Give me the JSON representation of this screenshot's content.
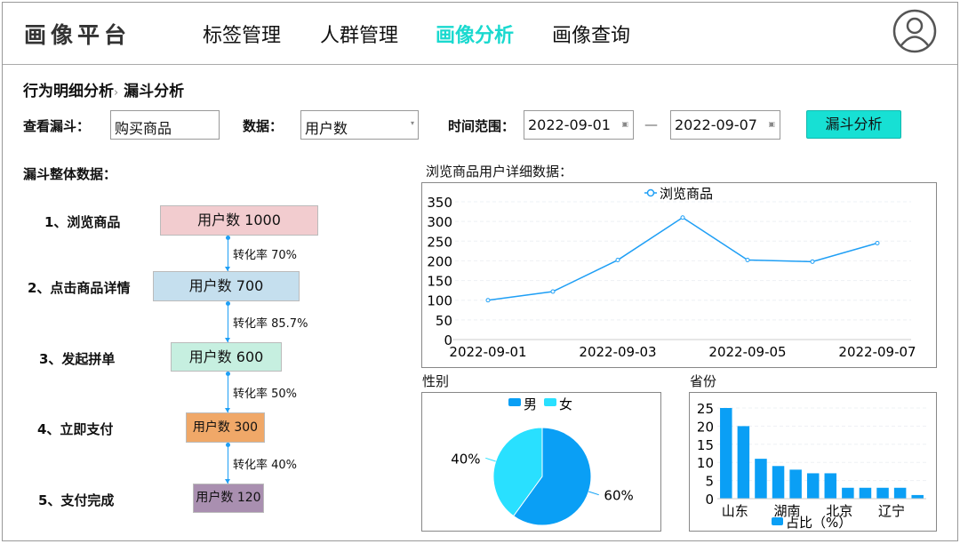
{
  "header": {
    "logo": "画像平台",
    "nav": [
      {
        "label": "标签管理",
        "active": false
      },
      {
        "label": "人群管理",
        "active": false
      },
      {
        "label": "画像分析",
        "active": true
      },
      {
        "label": "画像查询",
        "active": false
      }
    ]
  },
  "breadcrumb": {
    "parent": "行为明细分析",
    "separator": "›",
    "current": "漏斗分析"
  },
  "filters": {
    "funnel_label": "查看漏斗：",
    "funnel_value": "购买商品",
    "data_label": "数据：",
    "data_value": "用户数",
    "time_label": "时间范围：",
    "start_date": "2022-09-01",
    "end_date": "2022-09-07",
    "range_sep": "—",
    "submit": "漏斗分析"
  },
  "funnel": {
    "title": "漏斗整体数据：",
    "steps": [
      {
        "label": "1、浏览商品",
        "value": "用户数  1000",
        "color": "#f2cccf"
      },
      {
        "label": "2、点击商品详情",
        "value": "用户数  700",
        "color": "#c5dfee"
      },
      {
        "label": "3、发起拼单",
        "value": "用户数  600",
        "color": "#c6efe0"
      },
      {
        "label": "4、立即支付",
        "value": "用户数  300",
        "color": "#f0a868"
      },
      {
        "label": "5、支付完成",
        "value": "用户数 120",
        "color": "#a98fb0"
      }
    ],
    "rates": [
      "转化率 70%",
      "转化率 85.7%",
      "转化率 50%",
      "转化率 40%"
    ]
  },
  "chart_data": [
    {
      "type": "line",
      "title": "浏览商品用户详细数据：",
      "legend": "浏览商品",
      "legend_position": "top",
      "x": [
        "2022-09-01",
        "2022-09-02",
        "2022-09-03",
        "2022-09-04",
        "2022-09-05",
        "2022-09-06",
        "2022-09-07"
      ],
      "x_tick_labels": [
        "2022-09-01",
        "2022-09-03",
        "2022-09-05",
        "2022-09-07"
      ],
      "values": [
        100,
        122,
        202,
        310,
        202,
        198,
        245
      ],
      "ylim": [
        0,
        350
      ],
      "yticks": [
        0,
        50,
        100,
        150,
        200,
        250,
        300,
        350
      ],
      "grid": true,
      "color": "#1f9ff5"
    },
    {
      "type": "pie",
      "title": "性别",
      "legend": [
        {
          "name": "男",
          "color": "#0a9ff5"
        },
        {
          "name": "女",
          "color": "#29e0ff"
        }
      ],
      "legend_position": "top",
      "values": [
        60,
        40
      ],
      "labels": [
        "60%",
        "40%"
      ]
    },
    {
      "type": "bar",
      "title": "省份",
      "legend": "占比（%）",
      "legend_position": "bottom",
      "categories": [
        "山东",
        "",
        "",
        "湖南",
        "",
        "",
        "北京",
        "",
        "",
        "辽宁",
        "",
        ""
      ],
      "values": [
        25,
        20,
        11,
        9,
        8,
        7,
        7,
        3,
        3,
        3,
        3,
        1
      ],
      "ylim": [
        0,
        25
      ],
      "yticks": [
        0,
        5,
        10,
        15,
        20,
        25
      ],
      "grid": true,
      "color": "#0a9ff5"
    }
  ]
}
